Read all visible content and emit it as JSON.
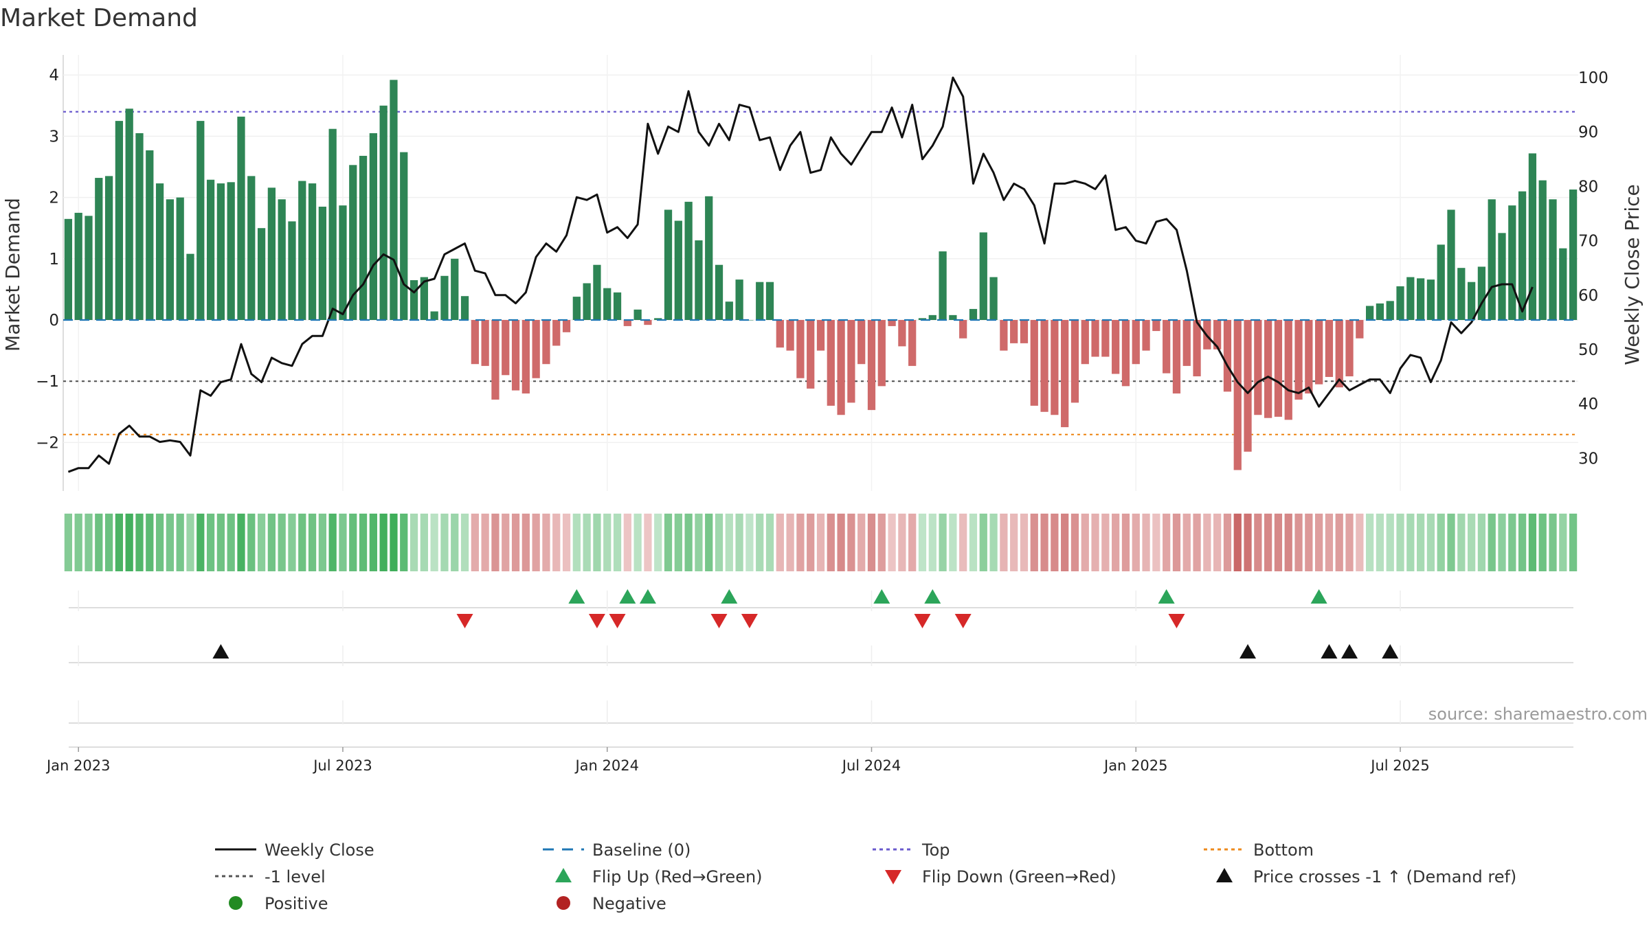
{
  "chart_data": {
    "type": "bar",
    "title": "Market Demand",
    "ylabel_left": "Market Demand",
    "ylabel_right": "Weekly Close Price",
    "source": "source: sharemaestro.com",
    "ylim_left": [
      -2.75,
      4.25
    ],
    "ylim_right": [
      22.5,
      102.5
    ],
    "yticks_left": [
      4,
      3,
      2,
      1,
      0,
      -1,
      -2
    ],
    "yticks_left_labels": [
      "4",
      "3",
      "2",
      "1",
      "0",
      "−1",
      "−2"
    ],
    "yticks_right": [
      100,
      90,
      80,
      70,
      60,
      50,
      40,
      30
    ],
    "x_tick_labels": [
      "Jan 2023",
      "Jul 2023",
      "Jan 2024",
      "Jul 2024",
      "Jan 2025",
      "Jul 2025"
    ],
    "x_tick_weeks": [
      1,
      27,
      53,
      79,
      105,
      131
    ],
    "reference_lines": {
      "top": 3.4,
      "minus_one": -1.0,
      "bottom": -1.87,
      "baseline": 0
    },
    "demand": [
      1.65,
      1.75,
      1.7,
      2.32,
      2.35,
      3.25,
      3.45,
      3.05,
      2.77,
      2.23,
      1.97,
      2.0,
      1.08,
      3.25,
      2.29,
      2.23,
      2.25,
      3.32,
      2.35,
      1.5,
      2.16,
      1.97,
      1.61,
      2.27,
      2.23,
      1.85,
      3.12,
      1.87,
      2.53,
      2.68,
      3.05,
      3.5,
      3.92,
      2.74,
      0.65,
      0.7,
      0.14,
      0.72,
      1.0,
      0.39,
      -0.72,
      -0.75,
      -1.3,
      -0.9,
      -1.15,
      -1.2,
      -0.95,
      -0.72,
      -0.42,
      -0.2,
      0.38,
      0.6,
      0.9,
      0.52,
      0.45,
      -0.1,
      0.17,
      -0.08,
      0.03,
      1.8,
      1.62,
      1.93,
      1.3,
      2.02,
      0.9,
      0.3,
      0.66,
      0.0,
      0.62,
      0.62,
      -0.45,
      -0.5,
      -0.95,
      -1.12,
      -0.5,
      -1.4,
      -1.55,
      -1.35,
      -0.72,
      -1.47,
      -1.08,
      -0.1,
      -0.43,
      -0.75,
      0.03,
      0.08,
      1.12,
      0.08,
      -0.3,
      0.18,
      1.43,
      0.7,
      -0.5,
      -0.38,
      -0.38,
      -1.4,
      -1.5,
      -1.55,
      -1.75,
      -1.35,
      -0.72,
      -0.6,
      -0.6,
      -0.88,
      -1.08,
      -0.72,
      -0.5,
      -0.18,
      -0.87,
      -1.2,
      -0.75,
      -0.92,
      -0.48,
      -0.48,
      -1.17,
      -2.45,
      -2.15,
      -1.55,
      -1.6,
      -1.58,
      -1.63,
      -1.3,
      -1.2,
      -1.05,
      -0.93,
      -1.1,
      -0.92,
      -0.3,
      0.23,
      0.27,
      0.31,
      0.55,
      0.7,
      0.68,
      0.66,
      1.23,
      1.8,
      0.85,
      0.62,
      0.87,
      1.97,
      1.42,
      1.87,
      2.1,
      2.72,
      2.28,
      1.97,
      1.17,
      2.13
    ],
    "weekly_close": [
      27.5,
      28.2,
      28.2,
      30.5,
      29.0,
      34.5,
      36.0,
      34.0,
      34.0,
      33.0,
      33.3,
      33.0,
      30.5,
      42.5,
      41.5,
      44.0,
      44.5,
      51.0,
      45.5,
      44.0,
      48.5,
      47.5,
      47.0,
      51.0,
      52.5,
      52.5,
      57.5,
      56.5,
      60.0,
      62.0,
      65.5,
      67.5,
      66.5,
      62.0,
      60.5,
      62.5,
      63.0,
      67.5,
      68.5,
      69.5,
      64.5,
      64.0,
      60.0,
      60.0,
      58.5,
      60.5,
      67.0,
      69.5,
      68.0,
      71.0,
      78.0,
      77.5,
      78.5,
      71.5,
      72.5,
      70.5,
      73.0,
      91.5,
      86.0,
      91.0,
      90.0,
      97.5,
      90.0,
      87.5,
      91.5,
      88.5,
      95.0,
      94.5,
      88.5,
      89.0,
      83.0,
      87.5,
      90.0,
      82.5,
      83.0,
      89.0,
      86.0,
      84.0,
      87.0,
      90.0,
      90.0,
      94.5,
      89.0,
      95.0,
      85.0,
      87.5,
      91.0,
      100.0,
      96.5,
      80.5,
      86.0,
      82.5,
      77.5,
      80.5,
      79.5,
      76.5,
      69.5,
      80.5,
      80.5,
      81.0,
      80.5,
      79.5,
      82.0,
      72.0,
      72.5,
      70.0,
      69.5,
      73.5,
      74.0,
      72.0,
      64.5,
      55.0,
      52.5,
      50.5,
      47.0,
      44.0,
      42.0,
      44.0,
      45.0,
      44.0,
      42.5,
      42.0,
      43.0,
      39.5,
      42.0,
      44.5,
      42.5,
      43.5,
      44.5,
      44.5,
      42.0,
      46.5,
      49.0,
      48.5,
      44.0,
      48.0,
      55.0,
      53.0,
      55.0,
      58.5,
      61.5,
      62.0,
      62.0,
      57.0,
      61.5
    ],
    "flip_up_weeks": [
      50,
      55,
      57,
      65,
      80,
      85,
      108,
      123
    ],
    "flip_down_weeks": [
      39,
      52,
      54,
      64,
      67,
      84,
      88,
      109
    ],
    "price_cross_weeks": [
      15,
      116,
      124,
      126,
      130
    ],
    "colors": {
      "positive_bar": "#2e8555",
      "negative_bar": "#cf6a6a",
      "weekly_close": "#111111",
      "baseline": "#1f77b4",
      "top": "#6a5acd",
      "minus_one": "#555555",
      "bottom": "#ee8a1d",
      "flip_up": "#2ca55a",
      "flip_down": "#d62828",
      "price_cross": "#111111",
      "positive_dot": "#228b22",
      "negative_dot": "#b22222"
    },
    "legend": [
      {
        "label": "Weekly Close",
        "kind": "solid-line",
        "color_key": "weekly_close"
      },
      {
        "label": "Baseline (0)",
        "kind": "long-dash",
        "color_key": "baseline"
      },
      {
        "label": "Top",
        "kind": "dotted",
        "color_key": "top"
      },
      {
        "label": "Bottom",
        "kind": "dotted",
        "color_key": "bottom"
      },
      {
        "label": "-1 level",
        "kind": "dotted",
        "color_key": "minus_one"
      },
      {
        "label": "Flip Up (Red→Green)",
        "kind": "triangle-up",
        "color_key": "flip_up"
      },
      {
        "label": "Flip Down (Green→Red)",
        "kind": "triangle-down",
        "color_key": "flip_down"
      },
      {
        "label": "Price crosses -1 ↑ (Demand ref)",
        "kind": "triangle-up",
        "color_key": "price_cross"
      },
      {
        "label": "Positive",
        "kind": "dot",
        "color_key": "positive_dot"
      },
      {
        "label": "Negative",
        "kind": "dot",
        "color_key": "negative_dot"
      }
    ]
  }
}
